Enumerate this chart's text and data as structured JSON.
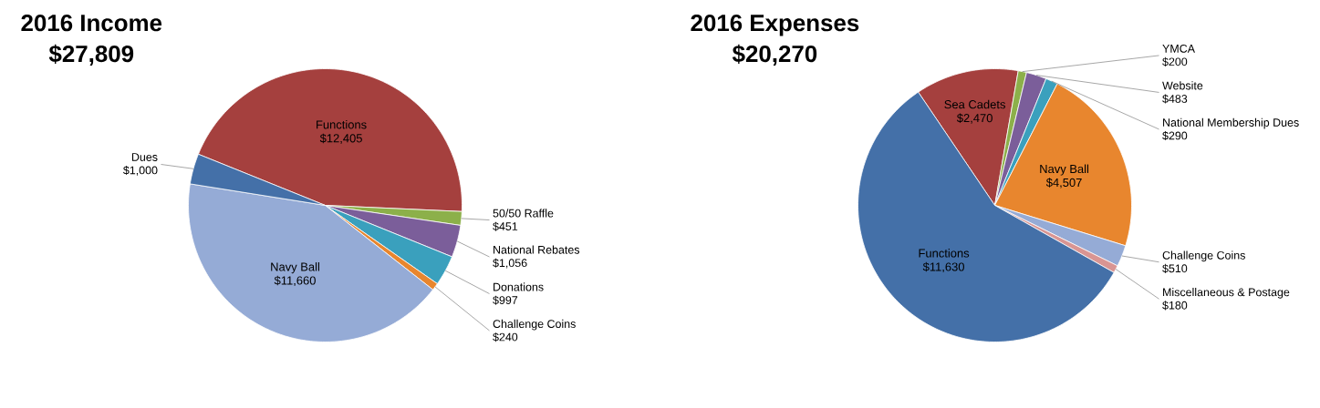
{
  "chart_data": [
    {
      "type": "pie",
      "title": "2016 Income",
      "subtitle": "$27,809",
      "categories": [
        "Functions",
        "50/50 Raffle",
        "National Rebates",
        "Donations",
        "Challenge Coins",
        "Navy Ball",
        "Dues"
      ],
      "values": [
        12405,
        451,
        1056,
        997,
        240,
        11660,
        1000
      ],
      "value_labels": [
        "$12,405",
        "$451",
        "$1,056",
        "$997",
        "$240",
        "$11,660",
        "$1,000"
      ],
      "colors": [
        "#a5403e",
        "#8cb04a",
        "#7b5e9a",
        "#3aa0bd",
        "#e8862e",
        "#95abd6",
        "#4470a8"
      ]
    },
    {
      "type": "pie",
      "title": "2016 Expenses",
      "subtitle": "$20,270",
      "categories": [
        "Sea Cadets",
        "YMCA",
        "Website",
        "National Membership Dues",
        "Navy Ball",
        "Challenge Coins",
        "Miscellaneous & Postage",
        "Functions"
      ],
      "values": [
        2470,
        200,
        483,
        290,
        4507,
        510,
        180,
        11630
      ],
      "value_labels": [
        "$2,470",
        "$200",
        "$483",
        "$290",
        "$4,507",
        "$510",
        "$180",
        "$11,630"
      ],
      "colors": [
        "#a5403e",
        "#8cb04a",
        "#7b5e9a",
        "#3aa0bd",
        "#e8862e",
        "#95abd6",
        "#d99593",
        "#4470a8"
      ]
    }
  ]
}
